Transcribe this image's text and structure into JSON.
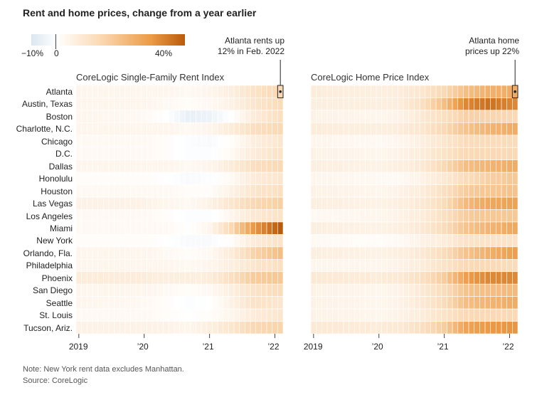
{
  "title": "Rent and home prices, change from a year earlier",
  "legend": {
    "min_label": "−10%",
    "zero_label": "0",
    "max_label": "40%",
    "colors": [
      "#dbe6f0",
      "#ffffff",
      "#fbd9b4",
      "#ec9a45",
      "#b95b0c"
    ]
  },
  "notes": {
    "note": "Note: New York rent data excludes Manhattan.",
    "source": "Source: CoreLogic"
  },
  "chart_data": [
    {
      "type": "heatmap",
      "title": "CoreLogic Single-Family Rent Index",
      "annotation": [
        "Atlanta rents up",
        "12% in Feb. 2022"
      ],
      "x_tick_labels": [
        "2019",
        "’20",
        "’21",
        "’22"
      ],
      "rows": [
        "Atlanta",
        "Austin, Texas",
        "Boston",
        "Charlotte, N.C.",
        "Chicago",
        "D.C.",
        "Dallas",
        "Honolulu",
        "Houston",
        "Las Vegas",
        "Los Angeles",
        "Miami",
        "New York",
        "Orlando, Fla.",
        "Philadelphia",
        "Phoenix",
        "San Diego",
        "Seattle",
        "St. Louis",
        "Tucson, Ariz."
      ],
      "period": "Jan 2019 - Feb 2022, monthly",
      "color_range": [
        -10,
        40
      ],
      "keyframes_months": [
        0,
        12,
        16,
        20,
        24,
        28,
        32,
        37
      ],
      "values_by_row": [
        [
          3,
          3,
          3,
          2,
          3,
          5,
          9,
          12
        ],
        [
          3,
          3,
          2,
          1,
          2,
          4,
          8,
          11
        ],
        [
          3,
          2,
          0,
          -6,
          -5,
          0,
          6,
          10
        ],
        [
          3,
          3,
          3,
          2,
          3,
          6,
          10,
          12
        ],
        [
          2,
          2,
          1,
          -1,
          -2,
          1,
          5,
          8
        ],
        [
          2,
          2,
          1,
          -1,
          -1,
          2,
          6,
          9
        ],
        [
          3,
          3,
          3,
          2,
          3,
          6,
          10,
          12
        ],
        [
          1,
          1,
          0,
          -2,
          -1,
          2,
          6,
          8
        ],
        [
          2,
          2,
          2,
          1,
          1,
          4,
          8,
          10
        ],
        [
          4,
          4,
          3,
          2,
          4,
          8,
          12,
          14
        ],
        [
          2,
          2,
          1,
          -1,
          -1,
          3,
          7,
          9
        ],
        [
          2,
          2,
          2,
          0,
          3,
          12,
          26,
          40
        ],
        [
          1,
          1,
          0,
          -2,
          -2,
          1,
          6,
          9
        ],
        [
          3,
          3,
          2,
          1,
          2,
          6,
          13,
          18
        ],
        [
          3,
          3,
          3,
          2,
          3,
          5,
          8,
          10
        ],
        [
          6,
          6,
          5,
          5,
          6,
          10,
          15,
          16
        ],
        [
          3,
          3,
          2,
          1,
          2,
          5,
          9,
          11
        ],
        [
          3,
          2,
          1,
          -1,
          0,
          4,
          9,
          8
        ],
        [
          2,
          2,
          1,
          0,
          1,
          3,
          6,
          8
        ],
        [
          4,
          4,
          4,
          3,
          5,
          8,
          12,
          13
        ]
      ]
    },
    {
      "type": "heatmap",
      "title": "CoreLogic Home Price Index",
      "annotation": [
        "Atlanta home",
        "prices up 22%"
      ],
      "x_tick_labels": [
        "2019",
        "’20",
        "’21",
        "’22"
      ],
      "rows": [
        "Atlanta",
        "Austin, Texas",
        "Boston",
        "Charlotte, N.C.",
        "Chicago",
        "D.C.",
        "Dallas",
        "Honolulu",
        "Houston",
        "Las Vegas",
        "Los Angeles",
        "Miami",
        "New York",
        "Orlando, Fla.",
        "Philadelphia",
        "Phoenix",
        "San Diego",
        "Seattle",
        "St. Louis",
        "Tucson, Ariz."
      ],
      "period": "Jan 2019 - Feb 2022, monthly",
      "color_range": [
        -10,
        40
      ],
      "keyframes_months": [
        0,
        12,
        16,
        20,
        24,
        28,
        32,
        37
      ],
      "values_by_row": [
        [
          6,
          5,
          6,
          8,
          12,
          18,
          21,
          22
        ],
        [
          5,
          5,
          6,
          10,
          18,
          30,
          35,
          30
        ],
        [
          4,
          3,
          4,
          7,
          10,
          14,
          13,
          12
        ],
        [
          6,
          5,
          6,
          8,
          12,
          17,
          20,
          22
        ],
        [
          3,
          2,
          3,
          5,
          8,
          11,
          11,
          11
        ],
        [
          4,
          3,
          4,
          6,
          9,
          12,
          12,
          12
        ],
        [
          5,
          4,
          5,
          7,
          12,
          18,
          20,
          22
        ],
        [
          3,
          2,
          2,
          4,
          7,
          11,
          14,
          16
        ],
        [
          4,
          3,
          4,
          6,
          10,
          15,
          16,
          17
        ],
        [
          5,
          4,
          5,
          7,
          11,
          19,
          23,
          24
        ],
        [
          2,
          3,
          4,
          6,
          10,
          15,
          16,
          16
        ],
        [
          5,
          4,
          5,
          7,
          11,
          17,
          20,
          23
        ],
        [
          2,
          1,
          2,
          4,
          6,
          9,
          9,
          9
        ],
        [
          5,
          4,
          5,
          7,
          11,
          17,
          21,
          25
        ],
        [
          3,
          3,
          4,
          6,
          9,
          12,
          12,
          11
        ],
        [
          7,
          6,
          7,
          10,
          15,
          25,
          30,
          30
        ],
        [
          4,
          3,
          4,
          7,
          11,
          17,
          18,
          19
        ],
        [
          4,
          3,
          4,
          7,
          11,
          18,
          20,
          22
        ],
        [
          4,
          3,
          4,
          6,
          9,
          12,
          12,
          12
        ],
        [
          7,
          6,
          7,
          10,
          15,
          24,
          26,
          27
        ]
      ]
    }
  ]
}
